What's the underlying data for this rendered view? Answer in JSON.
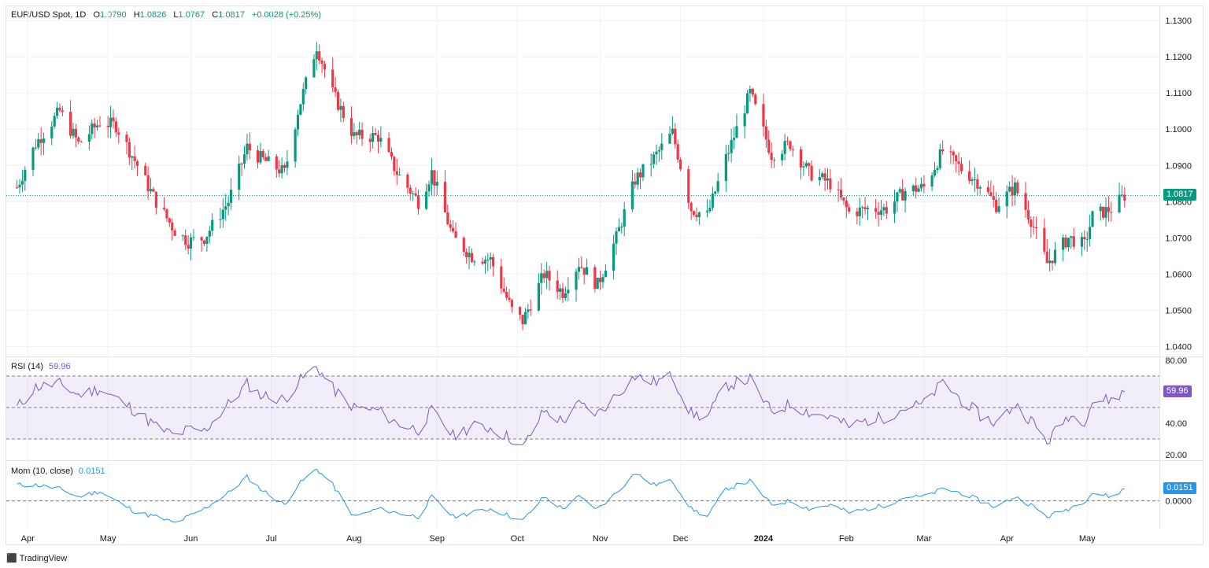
{
  "header": {
    "symbol": "EUR/USD Spot, 1D",
    "open_label": "O",
    "open": "1.0790",
    "high_label": "H",
    "high": "1.0826",
    "low_label": "L",
    "low": "1.0767",
    "close_label": "C",
    "close": "1.0817",
    "change": "+0.0028 (+0.25%)"
  },
  "rsi": {
    "label": "RSI (14)",
    "value": "59.96",
    "badge": "59.96"
  },
  "mom": {
    "label": "Mom (10, close)",
    "value": "0.0151",
    "badge": "0.0151"
  },
  "price_badge": "1.0817",
  "brand": "TradingView",
  "colors": {
    "up": "#089981",
    "down": "#f23645",
    "rsi": "#7e57c2",
    "mom": "#2196f3",
    "badge_price": "#089981"
  },
  "chart_data": [
    {
      "type": "candlestick",
      "title": "EUR/USD Spot, 1D",
      "y_ticks": [
        "1.1300",
        "1.1200",
        "1.1100",
        "1.1000",
        "1.0900",
        "1.0800",
        "1.0700",
        "1.0600",
        "1.0500",
        "1.0400"
      ],
      "ylim": [
        1.0375,
        1.1335
      ],
      "x_ticks": [
        "Apr",
        "May",
        "Jun",
        "Jul",
        "Aug",
        "Sep",
        "Oct",
        "Nov",
        "Dec",
        "2024",
        "Feb",
        "Mar",
        "Apr",
        "May"
      ],
      "last_price": 1.0817,
      "close_path": [
        [
          "2023-03-28",
          1.084
        ],
        [
          "2023-04-04",
          1.096
        ],
        [
          "2023-04-13",
          1.105
        ],
        [
          "2023-04-20",
          1.096
        ],
        [
          "2023-04-28",
          1.102
        ],
        [
          "2023-05-04",
          1.101
        ],
        [
          "2023-05-12",
          1.09
        ],
        [
          "2023-05-19",
          1.08
        ],
        [
          "2023-05-26",
          1.072
        ],
        [
          "2023-05-31",
          1.069
        ],
        [
          "2023-06-06",
          1.07
        ],
        [
          "2023-06-15",
          1.08
        ],
        [
          "2023-06-22",
          1.095
        ],
        [
          "2023-06-27",
          1.092
        ],
        [
          "2023-07-06",
          1.088
        ],
        [
          "2023-07-11",
          1.105
        ],
        [
          "2023-07-18",
          1.123
        ],
        [
          "2023-07-24",
          1.11
        ],
        [
          "2023-08-01",
          1.098
        ],
        [
          "2023-08-10",
          1.098
        ],
        [
          "2023-08-17",
          1.088
        ],
        [
          "2023-08-25",
          1.08
        ],
        [
          "2023-08-30",
          1.088
        ],
        [
          "2023-09-07",
          1.07
        ],
        [
          "2023-09-14",
          1.065
        ],
        [
          "2023-09-21",
          1.064
        ],
        [
          "2023-09-29",
          1.05
        ],
        [
          "2023-10-03",
          1.047
        ],
        [
          "2023-10-11",
          1.06
        ],
        [
          "2023-10-18",
          1.055
        ],
        [
          "2023-10-24",
          1.063
        ],
        [
          "2023-10-31",
          1.057
        ],
        [
          "2023-11-07",
          1.07
        ],
        [
          "2023-11-14",
          1.086
        ],
        [
          "2023-11-21",
          1.092
        ],
        [
          "2023-11-28",
          1.099
        ],
        [
          "2023-12-05",
          1.078
        ],
        [
          "2023-12-11",
          1.076
        ],
        [
          "2023-12-18",
          1.092
        ],
        [
          "2023-12-27",
          1.11
        ],
        [
          "2024-01-04",
          1.093
        ],
        [
          "2024-01-11",
          1.096
        ],
        [
          "2024-01-18",
          1.088
        ],
        [
          "2024-01-26",
          1.085
        ],
        [
          "2024-02-02",
          1.077
        ],
        [
          "2024-02-09",
          1.078
        ],
        [
          "2024-02-16",
          1.078
        ],
        [
          "2024-02-23",
          1.083
        ],
        [
          "2024-03-01",
          1.084
        ],
        [
          "2024-03-08",
          1.094
        ],
        [
          "2024-03-15",
          1.089
        ],
        [
          "2024-03-22",
          1.085
        ],
        [
          "2024-03-28",
          1.079
        ],
        [
          "2024-04-04",
          1.084
        ],
        [
          "2024-04-10",
          1.075
        ],
        [
          "2024-04-16",
          1.063
        ],
        [
          "2024-04-24",
          1.07
        ],
        [
          "2024-04-30",
          1.068
        ],
        [
          "2024-05-03",
          1.076
        ],
        [
          "2024-05-10",
          1.078
        ],
        [
          "2024-05-15",
          1.0817
        ]
      ]
    },
    {
      "type": "line",
      "title": "RSI (14)",
      "y_ticks": [
        "80.00",
        "40.00",
        "20.00"
      ],
      "ylim": [
        17,
        82
      ],
      "bands": [
        70,
        50,
        30
      ],
      "last_value": 59.96,
      "values": [
        [
          "2023-03-28",
          50
        ],
        [
          "2023-04-04",
          63
        ],
        [
          "2023-04-13",
          65
        ],
        [
          "2023-04-20",
          58
        ],
        [
          "2023-04-28",
          62
        ],
        [
          "2023-05-04",
          56
        ],
        [
          "2023-05-12",
          47
        ],
        [
          "2023-05-19",
          38
        ],
        [
          "2023-05-26",
          32
        ],
        [
          "2023-05-31",
          36
        ],
        [
          "2023-06-06",
          35
        ],
        [
          "2023-06-15",
          52
        ],
        [
          "2023-06-22",
          65
        ],
        [
          "2023-06-27",
          58
        ],
        [
          "2023-07-06",
          55
        ],
        [
          "2023-07-11",
          66
        ],
        [
          "2023-07-18",
          76
        ],
        [
          "2023-07-24",
          62
        ],
        [
          "2023-08-01",
          50
        ],
        [
          "2023-08-10",
          48
        ],
        [
          "2023-08-17",
          40
        ],
        [
          "2023-08-25",
          36
        ],
        [
          "2023-08-30",
          48
        ],
        [
          "2023-09-07",
          32
        ],
        [
          "2023-09-14",
          38
        ],
        [
          "2023-09-21",
          37
        ],
        [
          "2023-09-29",
          30
        ],
        [
          "2023-10-03",
          24
        ],
        [
          "2023-10-11",
          48
        ],
        [
          "2023-10-18",
          41
        ],
        [
          "2023-10-24",
          52
        ],
        [
          "2023-10-31",
          46
        ],
        [
          "2023-11-07",
          58
        ],
        [
          "2023-11-14",
          70
        ],
        [
          "2023-11-21",
          66
        ],
        [
          "2023-11-28",
          70
        ],
        [
          "2023-12-05",
          46
        ],
        [
          "2023-12-11",
          44
        ],
        [
          "2023-12-18",
          64
        ],
        [
          "2023-12-27",
          68
        ],
        [
          "2024-01-04",
          47
        ],
        [
          "2024-01-11",
          52
        ],
        [
          "2024-01-18",
          47
        ],
        [
          "2024-01-26",
          44
        ],
        [
          "2024-02-02",
          38
        ],
        [
          "2024-02-09",
          42
        ],
        [
          "2024-02-16",
          44
        ],
        [
          "2024-02-23",
          50
        ],
        [
          "2024-03-01",
          52
        ],
        [
          "2024-03-08",
          66
        ],
        [
          "2024-03-15",
          55
        ],
        [
          "2024-03-22",
          45
        ],
        [
          "2024-03-28",
          40
        ],
        [
          "2024-04-04",
          52
        ],
        [
          "2024-04-10",
          42
        ],
        [
          "2024-04-16",
          28
        ],
        [
          "2024-04-24",
          45
        ],
        [
          "2024-04-30",
          42
        ],
        [
          "2024-05-03",
          54
        ],
        [
          "2024-05-10",
          55
        ],
        [
          "2024-05-15",
          59.96
        ]
      ]
    },
    {
      "type": "line",
      "title": "Mom (10, close)",
      "y_ticks": [
        "0.0000"
      ],
      "ylim": [
        -0.035,
        0.05
      ],
      "last_value": 0.0151,
      "values": [
        [
          "2023-03-28",
          0.02
        ],
        [
          "2023-04-04",
          0.02
        ],
        [
          "2023-04-13",
          0.015
        ],
        [
          "2023-04-20",
          0.005
        ],
        [
          "2023-04-28",
          0.012
        ],
        [
          "2023-05-04",
          0.0
        ],
        [
          "2023-05-12",
          -0.015
        ],
        [
          "2023-05-19",
          -0.02
        ],
        [
          "2023-05-26",
          -0.028
        ],
        [
          "2023-05-31",
          -0.02
        ],
        [
          "2023-06-06",
          -0.01
        ],
        [
          "2023-06-15",
          0.01
        ],
        [
          "2023-06-22",
          0.03
        ],
        [
          "2023-06-27",
          0.015
        ],
        [
          "2023-07-06",
          -0.005
        ],
        [
          "2023-07-11",
          0.02
        ],
        [
          "2023-07-18",
          0.04
        ],
        [
          "2023-07-24",
          0.02
        ],
        [
          "2023-08-01",
          -0.02
        ],
        [
          "2023-08-10",
          -0.01
        ],
        [
          "2023-08-17",
          -0.015
        ],
        [
          "2023-08-25",
          -0.02
        ],
        [
          "2023-08-30",
          0.005
        ],
        [
          "2023-09-07",
          -0.02
        ],
        [
          "2023-09-14",
          -0.015
        ],
        [
          "2023-09-21",
          -0.01
        ],
        [
          "2023-09-29",
          -0.02
        ],
        [
          "2023-10-03",
          -0.025
        ],
        [
          "2023-10-11",
          0.005
        ],
        [
          "2023-10-18",
          -0.01
        ],
        [
          "2023-10-24",
          0.005
        ],
        [
          "2023-10-31",
          -0.01
        ],
        [
          "2023-11-07",
          0.01
        ],
        [
          "2023-11-14",
          0.035
        ],
        [
          "2023-11-21",
          0.02
        ],
        [
          "2023-11-28",
          0.025
        ],
        [
          "2023-12-05",
          -0.01
        ],
        [
          "2023-12-11",
          -0.02
        ],
        [
          "2023-12-18",
          0.015
        ],
        [
          "2023-12-27",
          0.025
        ],
        [
          "2024-01-04",
          -0.005
        ],
        [
          "2024-01-11",
          0.0
        ],
        [
          "2024-01-18",
          -0.01
        ],
        [
          "2024-01-26",
          -0.005
        ],
        [
          "2024-02-02",
          -0.015
        ],
        [
          "2024-02-09",
          -0.01
        ],
        [
          "2024-02-16",
          -0.005
        ],
        [
          "2024-02-23",
          0.005
        ],
        [
          "2024-03-01",
          0.005
        ],
        [
          "2024-03-08",
          0.015
        ],
        [
          "2024-03-15",
          0.01
        ],
        [
          "2024-03-22",
          0.0
        ],
        [
          "2024-03-28",
          -0.008
        ],
        [
          "2024-04-04",
          0.005
        ],
        [
          "2024-04-10",
          -0.005
        ],
        [
          "2024-04-16",
          -0.02
        ],
        [
          "2024-04-24",
          -0.01
        ],
        [
          "2024-04-30",
          0.0
        ],
        [
          "2024-05-03",
          0.01
        ],
        [
          "2024-05-10",
          0.005
        ],
        [
          "2024-05-15",
          0.0151
        ]
      ]
    }
  ]
}
